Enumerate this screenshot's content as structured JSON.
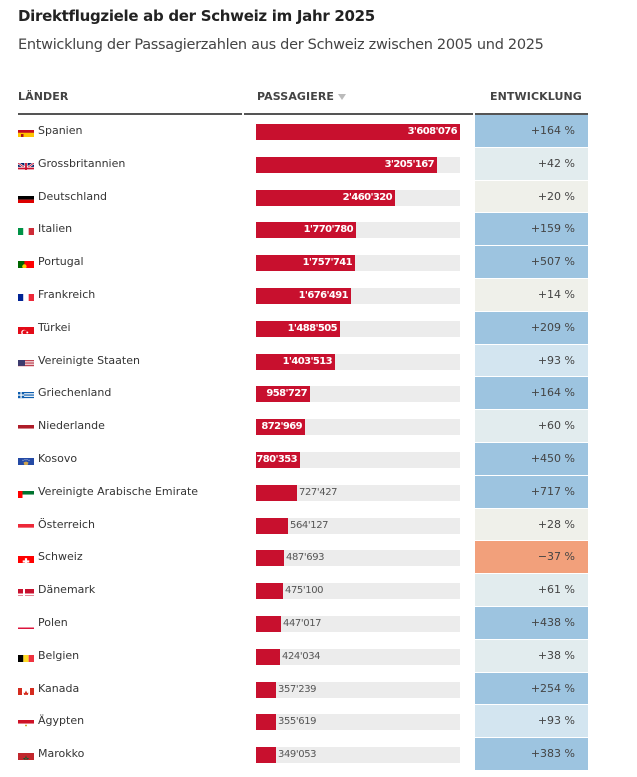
{
  "header": {
    "title": "Direktflugziele ab der Schweiz im Jahr 2025",
    "subtitle": "Entwicklung der Passagierzahlen aus der Schweiz zwischen 2005 und 2025"
  },
  "columns": {
    "country": "LÄNDER",
    "passengers": "PASSAGIERE",
    "development": "ENTWICKLUNG"
  },
  "colors": {
    "bar": "#c8102e",
    "track": "#ececec",
    "dev_high": "#9dc4e0",
    "dev_mid": "#d3e5f0",
    "dev_low": "#e2ecee",
    "dev_flat": "#eff0ea",
    "dev_negative": "#f2a07b"
  },
  "chart_data": {
    "type": "table",
    "title": "Direktflugziele ab der Schweiz im Jahr 2025",
    "subtitle": "Entwicklung der Passagierzahlen aus der Schweiz zwischen 2005 und 2025",
    "columns": [
      "LÄNDER",
      "PASSAGIERE",
      "ENTWICKLUNG"
    ],
    "sorted_by": "PASSAGIERE",
    "sort_order": "descending",
    "max_passengers": 3608076,
    "rows": [
      {
        "country": "Spanien",
        "flag": "es",
        "passengers": 3608076,
        "passengers_label": "3'608'076",
        "development": 164,
        "development_label": "+164 %",
        "dev_class": "dev_high"
      },
      {
        "country": "Grossbritannien",
        "flag": "gb",
        "passengers": 3205167,
        "passengers_label": "3'205'167",
        "development": 42,
        "development_label": "+42 %",
        "dev_class": "dev_low"
      },
      {
        "country": "Deutschland",
        "flag": "de",
        "passengers": 2460320,
        "passengers_label": "2'460'320",
        "development": 20,
        "development_label": "+20 %",
        "dev_class": "dev_flat"
      },
      {
        "country": "Italien",
        "flag": "it",
        "passengers": 1770780,
        "passengers_label": "1'770'780",
        "development": 159,
        "development_label": "+159 %",
        "dev_class": "dev_high"
      },
      {
        "country": "Portugal",
        "flag": "pt",
        "passengers": 1757741,
        "passengers_label": "1'757'741",
        "development": 507,
        "development_label": "+507 %",
        "dev_class": "dev_high"
      },
      {
        "country": "Frankreich",
        "flag": "fr",
        "passengers": 1676491,
        "passengers_label": "1'676'491",
        "development": 14,
        "development_label": "+14 %",
        "dev_class": "dev_flat"
      },
      {
        "country": "Türkei",
        "flag": "tr",
        "passengers": 1488505,
        "passengers_label": "1'488'505",
        "development": 209,
        "development_label": "+209 %",
        "dev_class": "dev_high"
      },
      {
        "country": "Vereinigte Staaten",
        "flag": "us",
        "passengers": 1403513,
        "passengers_label": "1'403'513",
        "development": 93,
        "development_label": "+93 %",
        "dev_class": "dev_mid"
      },
      {
        "country": "Griechenland",
        "flag": "gr",
        "passengers": 958727,
        "passengers_label": "958'727",
        "development": 164,
        "development_label": "+164 %",
        "dev_class": "dev_high"
      },
      {
        "country": "Niederlande",
        "flag": "nl",
        "passengers": 872969,
        "passengers_label": "872'969",
        "development": 60,
        "development_label": "+60 %",
        "dev_class": "dev_low"
      },
      {
        "country": "Kosovo",
        "flag": "xk",
        "passengers": 780353,
        "passengers_label": "780'353",
        "development": 450,
        "development_label": "+450 %",
        "dev_class": "dev_high"
      },
      {
        "country": "Vereinigte Arabische Emirate",
        "flag": "ae",
        "passengers": 727427,
        "passengers_label": "727'427",
        "development": 717,
        "development_label": "+717 %",
        "dev_class": "dev_high"
      },
      {
        "country": "Österreich",
        "flag": "at",
        "passengers": 564127,
        "passengers_label": "564'127",
        "development": 28,
        "development_label": "+28 %",
        "dev_class": "dev_flat"
      },
      {
        "country": "Schweiz",
        "flag": "ch",
        "passengers": 487693,
        "passengers_label": "487'693",
        "development": -37,
        "development_label": "−37 %",
        "dev_class": "dev_negative"
      },
      {
        "country": "Dänemark",
        "flag": "dk",
        "passengers": 475100,
        "passengers_label": "475'100",
        "development": 61,
        "development_label": "+61 %",
        "dev_class": "dev_low"
      },
      {
        "country": "Polen",
        "flag": "pl",
        "passengers": 447017,
        "passengers_label": "447'017",
        "development": 438,
        "development_label": "+438 %",
        "dev_class": "dev_high"
      },
      {
        "country": "Belgien",
        "flag": "be",
        "passengers": 424034,
        "passengers_label": "424'034",
        "development": 38,
        "development_label": "+38 %",
        "dev_class": "dev_low"
      },
      {
        "country": "Kanada",
        "flag": "ca",
        "passengers": 357239,
        "passengers_label": "357'239",
        "development": 254,
        "development_label": "+254 %",
        "dev_class": "dev_high"
      },
      {
        "country": "Ägypten",
        "flag": "eg",
        "passengers": 355619,
        "passengers_label": "355'619",
        "development": 93,
        "development_label": "+93 %",
        "dev_class": "dev_mid"
      },
      {
        "country": "Marokko",
        "flag": "ma",
        "passengers": 349053,
        "passengers_label": "349'053",
        "development": 383,
        "development_label": "+383 %",
        "dev_class": "dev_high"
      }
    ]
  }
}
